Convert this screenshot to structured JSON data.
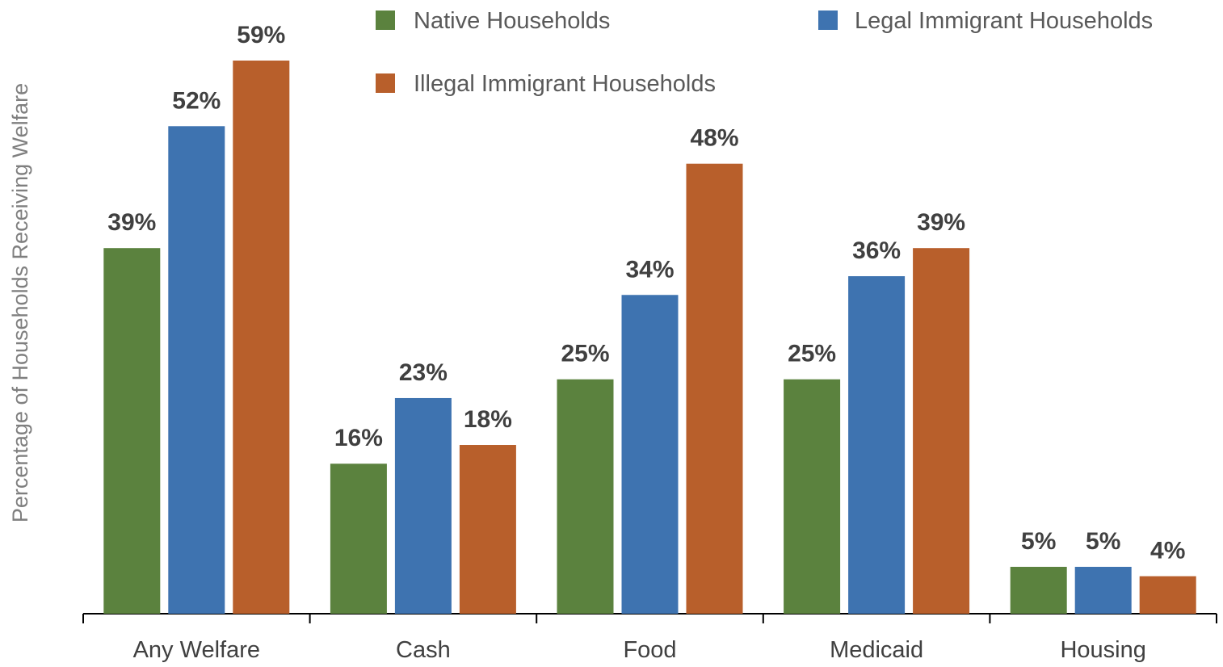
{
  "chart_data": {
    "type": "bar",
    "title": "",
    "xlabel": "",
    "ylabel": "Percentage of Households Receiving Welfare",
    "ylim": [
      0,
      65
    ],
    "grid": false,
    "legend_position": "top-right",
    "categories": [
      "Any Welfare",
      "Cash",
      "Food",
      "Medicaid",
      "Housing"
    ],
    "series": [
      {
        "name": "Native Households",
        "color": "#5b823e",
        "values": [
          39,
          16,
          25,
          25,
          5
        ],
        "labels": [
          "39%",
          "16%",
          "25%",
          "25%",
          "5%"
        ]
      },
      {
        "name": "Legal Immigrant Households",
        "color": "#3e73b0",
        "values": [
          52,
          23,
          34,
          36,
          5
        ],
        "labels": [
          "52%",
          "23%",
          "34%",
          "36%",
          "5%"
        ]
      },
      {
        "name": "Illegal Immigrant Households",
        "color": "#b85f2b",
        "values": [
          59,
          18,
          48,
          39,
          4
        ],
        "labels": [
          "59%",
          "18%",
          "48%",
          "39%",
          "4%"
        ]
      }
    ]
  }
}
